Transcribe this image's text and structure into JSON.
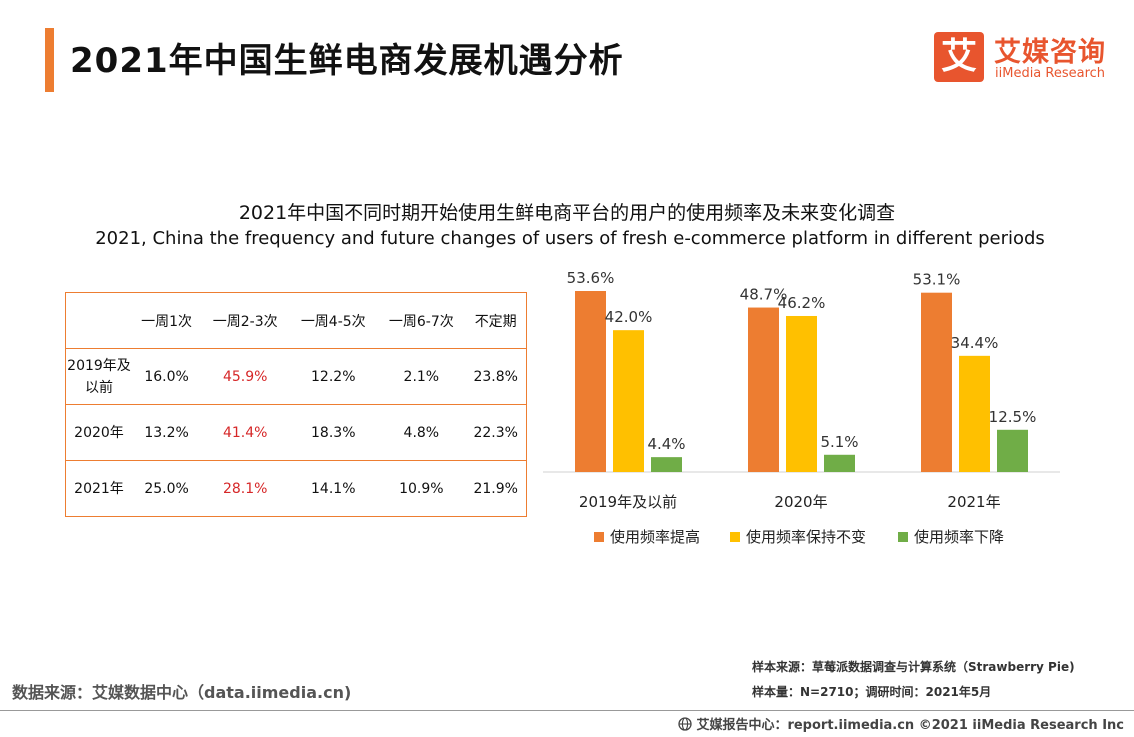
{
  "page_title": "2021年中国生鲜电商发展机遇分析",
  "logo": {
    "mark": "艾",
    "cn": "艾媒咨询",
    "en": "iiMedia Research"
  },
  "subtitle_cn": "2021年中国不同时期开始使用生鲜电商平台的用户的使用频率及未来变化调查",
  "subtitle_en": "2021, China the frequency and future changes of users of fresh e-commerce platform in different periods",
  "table": {
    "headers": [
      "一周1次",
      "一周2-3次",
      "一周4-5次",
      "一周6-7次",
      "不定期"
    ],
    "rows": [
      {
        "label_line1": "2019年及",
        "label_line2": "以前",
        "values": [
          "16.0%",
          "45.9%",
          "12.2%",
          "2.1%",
          "23.8%"
        ]
      },
      {
        "label_line1": "2020年",
        "label_line2": "",
        "values": [
          "13.2%",
          "41.4%",
          "18.3%",
          "4.8%",
          "22.3%"
        ]
      },
      {
        "label_line1": "2021年",
        "label_line2": "",
        "values": [
          "25.0%",
          "28.1%",
          "14.1%",
          "10.9%",
          "21.9%"
        ]
      }
    ]
  },
  "chart_data": {
    "type": "bar",
    "categories": [
      "2019年及以前",
      "2020年",
      "2021年"
    ],
    "series": [
      {
        "name": "使用频率提高",
        "color": "#ed7d31",
        "values": [
          53.6,
          48.7,
          53.1
        ],
        "labels": [
          "53.6%",
          "48.7%",
          "53.1%"
        ]
      },
      {
        "name": "使用频率保持不变",
        "color": "#ffc000",
        "values": [
          42.0,
          46.2,
          34.4
        ],
        "labels": [
          "42.0%",
          "46.2%",
          "34.4%"
        ]
      },
      {
        "name": "使用频率下降",
        "color": "#70ad47",
        "values": [
          4.4,
          5.1,
          12.5
        ],
        "labels": [
          "4.4%",
          "5.1%",
          "12.5%"
        ]
      }
    ],
    "title": "2021年中国不同时期开始使用生鲜电商平台的用户的使用频率及未来变化调查",
    "ylim": [
      0,
      60
    ],
    "legend": "bottom"
  },
  "source_left": "数据来源：艾媒数据中心（data.iimedia.cn)",
  "note_source": "样本来源：草莓派数据调查与计算系统（Strawberry Pie)",
  "note_sample": "样本量：N=2710；调研时间：2021年5月",
  "footer": "艾媒报告中心：report.iimedia.cn  ©2021  iiMedia Research  Inc"
}
